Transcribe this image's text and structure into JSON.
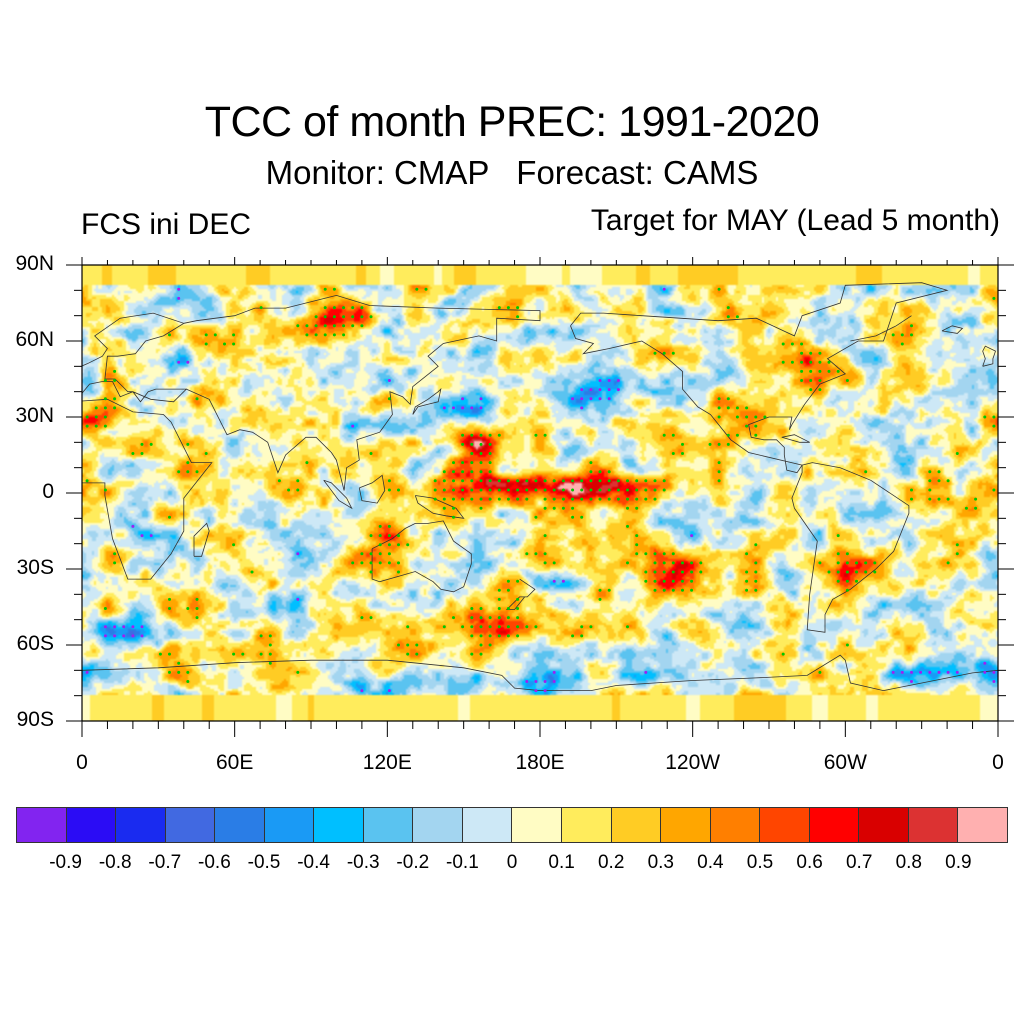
{
  "titles": {
    "main": "TCC of month PREC: 1991-2020",
    "sub": "Monitor: CMAP   Forecast: CAMS",
    "left": "FCS ini DEC",
    "right": "Target for MAY (Lead 5 month)"
  },
  "chart_data": {
    "type": "heatmap",
    "title": "TCC of month PREC: 1991-2020",
    "subtitle": "Monitor: CMAP   Forecast: CAMS",
    "left_annotation": "FCS ini DEC",
    "right_annotation": "Target for MAY (Lead 5 month)",
    "projection": "cylindrical-equidistant",
    "lon_range": [
      0,
      360
    ],
    "lat_range": [
      -90,
      90
    ],
    "x_ticks": [
      "0",
      "60E",
      "120E",
      "180E",
      "120W",
      "60W",
      "0"
    ],
    "x_tick_values": [
      0,
      60,
      120,
      180,
      240,
      300,
      360
    ],
    "y_ticks": [
      "90N",
      "60N",
      "30N",
      "0",
      "30S",
      "60S",
      "90S"
    ],
    "y_tick_values": [
      90,
      60,
      30,
      0,
      -30,
      -60,
      -90
    ],
    "colorbar": {
      "levels": [
        "-0.9",
        "-0.8",
        "-0.7",
        "-0.6",
        "-0.5",
        "-0.4",
        "-0.3",
        "-0.2",
        "-0.1",
        "0",
        "0.1",
        "0.2",
        "0.3",
        "0.4",
        "0.5",
        "0.6",
        "0.7",
        "0.8",
        "0.9"
      ],
      "colors": [
        "#8224f0",
        "#2b0cf5",
        "#1a2bf0",
        "#4169e1",
        "#2a7de6",
        "#1a9af5",
        "#00bfff",
        "#5ac3f0",
        "#a3d5f0",
        "#cde8f6",
        "#fffcc4",
        "#ffec5c",
        "#ffcc24",
        "#ffa600",
        "#ff7f00",
        "#ff4500",
        "#ff0000",
        "#d90000",
        "#dc3232",
        "#ffb0b0"
      ],
      "orientation": "horizontal",
      "position": "bottom"
    },
    "stippling": {
      "positive_significant_color": "#00c800",
      "negative_significant_color": "#a020f0"
    },
    "notable_features": [
      {
        "region": "Equatorial central Pacific (~170E-150W, 0-5N)",
        "value_range": "0.4 to 0.7"
      },
      {
        "region": "Western North Pacific (~155E, 20N)",
        "value_range": "0.5 to 0.7"
      },
      {
        "region": "North Pacific (~160W, 40N)",
        "value_range": "-0.4 to -0.5"
      },
      {
        "region": "Southern Ocean near Antarctica (~120E-180E, 75S)",
        "value_range": "-0.2 to -0.4"
      },
      {
        "region": "Southwest Pacific / Tasman (~160E, 50S)",
        "value_range": "0.4 to 0.6"
      },
      {
        "region": "Western Mediterranean / N Africa (~0-10E, 30N)",
        "value_range": "0.5 to 0.7"
      },
      {
        "region": "South Atlantic (~10W-20W, 70S)",
        "value_range": "-0.4 to -0.5"
      }
    ]
  }
}
